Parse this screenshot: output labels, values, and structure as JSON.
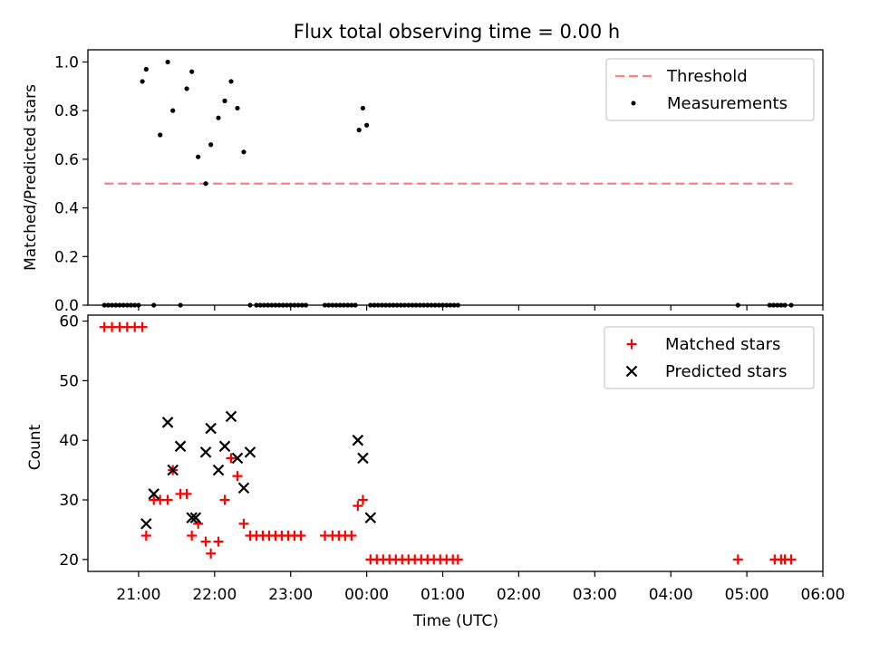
{
  "title": "Flux total observing time = 0.00 h",
  "colors": {
    "threshold": "#ff7f7f",
    "measurements": "#000000",
    "matched": "#ff0000",
    "predicted": "#000000"
  },
  "chart_data": [
    {
      "type": "scatter",
      "ylabel": "Matched/Predicted stars",
      "xlabel": "",
      "xlim": [
        "20:20",
        "06:00"
      ],
      "ylim": [
        0,
        1.05
      ],
      "yticks": [
        0.0,
        0.2,
        0.4,
        0.6,
        0.8,
        1.0
      ],
      "ytick_labels": [
        "0.0",
        "0.2",
        "0.4",
        "0.6",
        "0.8",
        "1.0"
      ],
      "legend": {
        "placement": "upper-right",
        "entries": [
          "Threshold",
          "Measurements"
        ]
      },
      "threshold": {
        "name": "Threshold",
        "y": 0.5,
        "x_range": [
          "20:33",
          "05:36"
        ],
        "style": "dashed"
      },
      "series": [
        {
          "name": "Measurements",
          "marker": "dot",
          "x": [
            "20:33",
            "20:36",
            "20:39",
            "20:42",
            "20:45",
            "20:48",
            "20:51",
            "20:54",
            "20:57",
            "21:00",
            "21:03",
            "21:06",
            "21:12",
            "21:17",
            "21:23",
            "21:27",
            "21:33",
            "21:38",
            "21:42",
            "21:47",
            "21:53",
            "21:57",
            "22:03",
            "22:08",
            "22:13",
            "22:18",
            "22:23",
            "22:28",
            "22:33",
            "22:36",
            "22:39",
            "22:42",
            "22:45",
            "22:48",
            "22:51",
            "22:54",
            "22:57",
            "23:00",
            "23:03",
            "23:06",
            "23:09",
            "23:12",
            "23:27",
            "23:30",
            "23:33",
            "23:36",
            "23:39",
            "23:42",
            "23:45",
            "23:48",
            "23:51",
            "23:54",
            "23:57",
            "00:00",
            "00:03",
            "00:06",
            "00:09",
            "00:12",
            "00:15",
            "00:18",
            "00:21",
            "00:24",
            "00:27",
            "00:30",
            "00:33",
            "00:36",
            "00:39",
            "00:42",
            "00:45",
            "00:48",
            "00:51",
            "00:54",
            "00:57",
            "01:00",
            "01:03",
            "01:06",
            "01:09",
            "01:12",
            "04:53",
            "05:18",
            "05:21",
            "05:24",
            "05:27",
            "05:30",
            "05:35"
          ],
          "y": [
            0,
            0,
            0,
            0,
            0,
            0,
            0,
            0,
            0,
            0,
            0.92,
            0.97,
            0,
            0.7,
            1.0,
            0.8,
            0,
            0.89,
            0.96,
            0.61,
            0.5,
            0.66,
            0.77,
            0.84,
            0.92,
            0.81,
            0.63,
            0,
            0,
            0,
            0,
            0,
            0,
            0,
            0,
            0,
            0,
            0,
            0,
            0,
            0,
            0,
            0,
            0,
            0,
            0,
            0,
            0,
            0,
            0,
            0,
            0.72,
            0.81,
            0.74,
            0,
            0,
            0,
            0,
            0,
            0,
            0,
            0,
            0,
            0,
            0,
            0,
            0,
            0,
            0,
            0,
            0,
            0,
            0,
            0,
            0,
            0,
            0,
            0,
            0,
            0,
            0,
            0,
            0,
            0,
            0
          ]
        }
      ]
    },
    {
      "type": "scatter",
      "xlabel": "Time (UTC)",
      "ylabel": "Count",
      "xlim": [
        "20:20",
        "06:00"
      ],
      "ylim": [
        18,
        61
      ],
      "yticks": [
        20,
        30,
        40,
        50,
        60
      ],
      "ytick_labels": [
        "20",
        "30",
        "40",
        "50",
        "60"
      ],
      "xticks": [
        "21:00",
        "22:00",
        "23:00",
        "00:00",
        "01:00",
        "02:00",
        "03:00",
        "04:00",
        "05:00",
        "06:00"
      ],
      "legend": {
        "placement": "upper-right",
        "entries": [
          "Matched stars",
          "Predicted stars"
        ]
      },
      "series": [
        {
          "name": "Matched stars",
          "marker": "plus",
          "x": [
            "20:33",
            "20:39",
            "20:45",
            "20:51",
            "20:57",
            "21:03",
            "21:06",
            "21:12",
            "21:17",
            "21:23",
            "21:27",
            "21:33",
            "21:38",
            "21:42",
            "21:47",
            "21:53",
            "21:57",
            "22:03",
            "22:08",
            "22:13",
            "22:18",
            "22:23",
            "22:28",
            "22:33",
            "22:38",
            "22:43",
            "22:48",
            "22:53",
            "22:58",
            "23:03",
            "23:08",
            "23:27",
            "23:33",
            "23:38",
            "23:43",
            "23:48",
            "23:53",
            "23:57",
            "00:03",
            "00:08",
            "00:13",
            "00:18",
            "00:23",
            "00:28",
            "00:33",
            "00:38",
            "00:43",
            "00:48",
            "00:53",
            "00:58",
            "01:03",
            "01:08",
            "01:12",
            "04:53",
            "05:22",
            "05:27",
            "05:30",
            "05:35"
          ],
          "y": [
            59,
            59,
            59,
            59,
            59,
            59,
            24,
            30,
            30,
            30,
            35,
            31,
            31,
            24,
            26,
            23,
            21,
            23,
            30,
            37,
            34,
            26,
            24,
            24,
            24,
            24,
            24,
            24,
            24,
            24,
            24,
            24,
            24,
            24,
            24,
            24,
            29,
            30,
            20,
            20,
            20,
            20,
            20,
            20,
            20,
            20,
            20,
            20,
            20,
            20,
            20,
            20,
            20,
            20,
            20,
            20,
            20,
            20
          ]
        },
        {
          "name": "Predicted stars",
          "marker": "x",
          "x": [
            "21:06",
            "21:12",
            "21:23",
            "21:27",
            "21:33",
            "21:42",
            "21:45",
            "21:53",
            "21:57",
            "22:03",
            "22:08",
            "22:13",
            "22:18",
            "22:23",
            "22:28",
            "23:53",
            "23:57",
            "00:03"
          ],
          "y": [
            26,
            31,
            43,
            35,
            39,
            27,
            27,
            38,
            42,
            35,
            39,
            44,
            37,
            32,
            38,
            40,
            37,
            27
          ]
        }
      ]
    }
  ]
}
